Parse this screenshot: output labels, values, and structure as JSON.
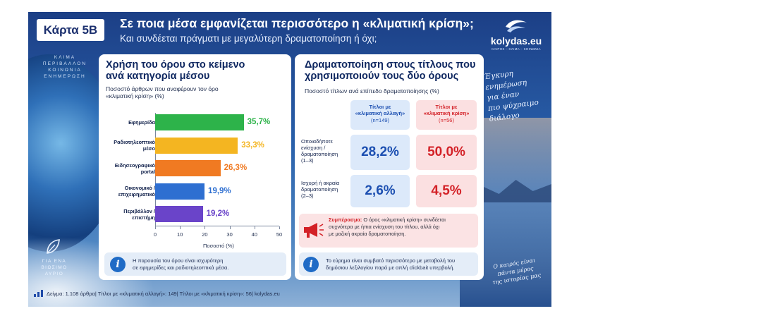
{
  "header": {
    "badge": "Κάρτα 5Β",
    "title": "Σε ποια μέσα εμφανίζεται περισσότερο η «κλιματική κρίση»;",
    "subtitle": "Και συνδέεται πράγματι με μεγαλύτερη δραματοποίηση ή όχι;"
  },
  "logo": {
    "name": "kolydas.eu",
    "tagline": "ΚΑΙΡΟΣ – ΚΛΙΜΑ – ΚΟΙΝΩΝΙΑ"
  },
  "side": {
    "left_top": [
      "ΚΛΙΜΑ",
      "ΠΕΡΙΒΑΛΛΟΝ",
      "ΚΟΙΝΩΝΙΑ",
      "ΕΝΗΜΕΡΩΣΗ"
    ],
    "left_bottom": [
      "ΓΙΑ ΕΝΑ",
      "ΒΙΩΣΙΜΟ",
      "ΑΥΡΙΟ"
    ],
    "right_top": [
      "Έγκυρη",
      "ενημέρωση",
      "για έναν",
      "πιο ψύχραιμο",
      "διάλογο"
    ],
    "right_bottom": [
      "Ο καιρός είναι",
      "πάντα μέρος",
      "της ιστορίας μας"
    ]
  },
  "left_panel": {
    "title_l1": "Χρήση του όρου στο κείμενο",
    "title_l2": "ανά κατηγορία μέσου",
    "sub_l1": "Ποσοστό άρθρων που αναφέρουν τον όρο",
    "sub_l2": "«κλιματική κρίση» (%)",
    "info_l1": "Η παρουσία του όρου είναι ισχυρότερη",
    "info_l2": "σε εφημερίδες και ραδιοτηλεοπτικά μέσα."
  },
  "right_panel": {
    "title_l1": "Δραματοποίηση στους τίτλους που",
    "title_l2": "χρησιμοποιούν τους δύο όρους",
    "sub": "Ποσοστό τίτλων ανά επίπεδο δραματοποίησης (%)",
    "col1": {
      "l1": "Τίτλοι με",
      "l2": "«κλιματική αλλαγή»",
      "n": "(n=149)"
    },
    "col2": {
      "l1": "Τίτλοι με",
      "l2": "«κλιματική κρίση»",
      "n": "(n=56)"
    },
    "rows": [
      {
        "label": [
          "Οποιαδήποτε",
          "ενίσχυση /",
          "δραματοποίηση",
          "(1–3)"
        ],
        "v1": "28,2%",
        "v2": "50,0%"
      },
      {
        "label": [
          "Ισχυρή ή ακραία",
          "δραματοποίηση",
          "(2–3)"
        ],
        "v1": "2,6%",
        "v2": "4,5%"
      }
    ],
    "summary_bold": "Συμπέρασμα:",
    "summary_l1": " Ο όρος «κλιματική κρίση» συνδέεται",
    "summary_l2": "συχνότερα με ήπια ενίσχυση του τίτλου, αλλά όχι",
    "summary_l3": "με μαζική ακραία δραματοποίηση.",
    "info_l1": "Το εύρημα είναι συμβατό περισσότερο με μεταβολή του",
    "info_l2": "δημόσιου λεξιλογίου παρά με απλή clickbait υπερβολή."
  },
  "footer": {
    "items": [
      "Δείγμα: 1.108 άρθρα",
      "Τίτλοι με «κλιματική αλλαγή»: 149",
      "Τίτλοι με «κλιματική κρίση»: 56",
      "kolydas.eu"
    ]
  },
  "colors": {
    "green": "#2db34a",
    "yellow": "#f4b521",
    "orange": "#f07a22",
    "blue": "#2e6fd1",
    "purple": "#6a44c9",
    "cell_blue_bg": "#dce9fa",
    "cell_blue_fg": "#1c4fb1",
    "cell_red_bg": "#fbe0e1",
    "cell_red_fg": "#d32127"
  },
  "chart_data": [
    {
      "type": "bar",
      "orientation": "horizontal",
      "categories": [
        "Εφημερίδα",
        "Ραδιοτηλεοπτικό μέσο",
        "Ειδησεογραφικό portal",
        "Οικονομικό / επιχειρηματικό",
        "Περιβάλλον / επιστήμη"
      ],
      "category_lines": [
        [
          "Εφημερίδα"
        ],
        [
          "Ραδιοτηλεοπτικό",
          "μέσο"
        ],
        [
          "Ειδησεογραφικό",
          "portal"
        ],
        [
          "Οικονομικό /",
          "επιχειρηματικό"
        ],
        [
          "Περιβάλλον /",
          "επιστήμη"
        ]
      ],
      "values": [
        35.7,
        33.3,
        26.3,
        19.9,
        19.2
      ],
      "value_labels": [
        "35,7%",
        "33,3%",
        "26,3%",
        "19,9%",
        "19,2%"
      ],
      "bar_colors": [
        "#2db34a",
        "#f4b521",
        "#f07a22",
        "#2e6fd1",
        "#6a44c9"
      ],
      "xlabel": "Ποσοστό (%)",
      "xlim": [
        0,
        50
      ],
      "xticks": [
        0,
        10,
        20,
        30,
        40,
        50
      ],
      "grid": false
    },
    {
      "type": "table",
      "columns": [
        "Τίτλοι με «κλιματική αλλαγή» (n=149)",
        "Τίτλοι με «κλιματική κρίση» (n=56)"
      ],
      "rows": [
        "Οποιαδήποτε ενίσχυση / δραματοποίηση (1–3)",
        "Ισχυρή ή ακραία δραματοποίηση (2–3)"
      ],
      "values": [
        [
          28.2,
          50.0
        ],
        [
          2.6,
          4.5
        ]
      ]
    }
  ]
}
